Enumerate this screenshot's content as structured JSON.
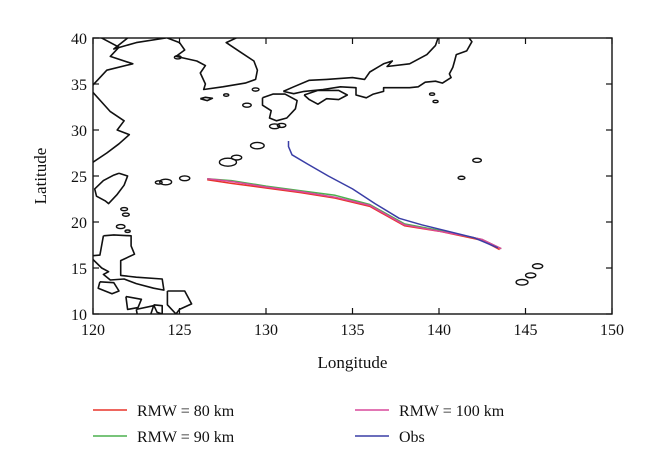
{
  "chart_data": {
    "type": "line",
    "title": "",
    "xlabel": "Longitude",
    "ylabel": "Latitude",
    "xlim": [
      120,
      150
    ],
    "ylim": [
      10,
      40
    ],
    "xticks": [
      120,
      125,
      130,
      135,
      140,
      145,
      150
    ],
    "yticks": [
      10,
      15,
      20,
      25,
      30,
      35,
      40
    ],
    "grid": false,
    "legend_position": "bottom",
    "series": [
      {
        "name": "RMW = 80 km",
        "color": "#e8342a",
        "x": [
          126.6,
          128,
          130,
          132,
          134,
          136,
          138,
          140,
          141.5,
          142.5,
          143.5
        ],
        "y": [
          24.6,
          24.2,
          23.7,
          23.2,
          22.6,
          21.7,
          19.6,
          19.0,
          18.4,
          18.0,
          17.0
        ]
      },
      {
        "name": "RMW = 90 km",
        "color": "#4bb04f",
        "x": [
          126.6,
          128,
          130,
          132,
          134,
          136,
          138,
          140,
          141.5,
          142.5,
          143.6
        ],
        "y": [
          24.7,
          24.5,
          23.9,
          23.4,
          22.9,
          21.9,
          19.8,
          19.1,
          18.5,
          18.1,
          17.1
        ]
      },
      {
        "name": "RMW = 100 km",
        "color": "#d9489b",
        "x": [
          126.6,
          128,
          130,
          132,
          134,
          136,
          138,
          140,
          141.5,
          142.5,
          143.6
        ],
        "y": [
          24.7,
          24.4,
          23.8,
          23.3,
          22.7,
          21.8,
          19.7,
          19.0,
          18.5,
          18.1,
          17.1
        ]
      },
      {
        "name": "Obs",
        "color": "#3a3ea6",
        "x": [
          131.3,
          131.3,
          131.5,
          132.4,
          133.6,
          135,
          136.3,
          137.7,
          139,
          140.5,
          142,
          143.4
        ],
        "y": [
          28.8,
          28.2,
          27.3,
          26.3,
          25.0,
          23.6,
          22.0,
          20.4,
          19.7,
          19.0,
          18.3,
          17.2
        ]
      }
    ]
  },
  "colors": {
    "axis": "#111111",
    "coastline": "#111111",
    "background": "#ffffff"
  }
}
